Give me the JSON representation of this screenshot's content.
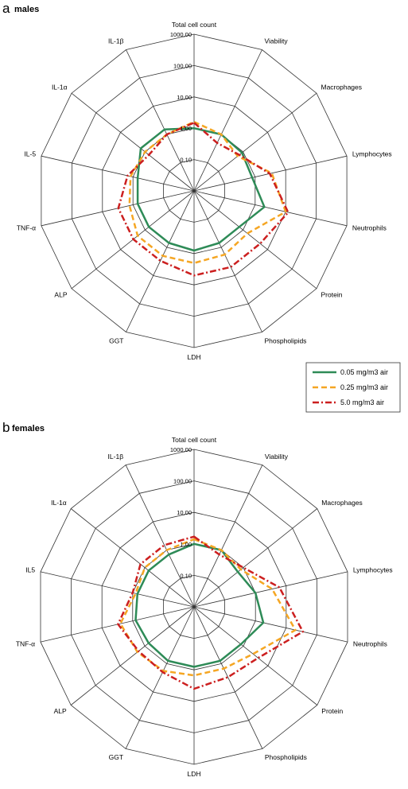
{
  "chart_data": [
    {
      "type": "radar",
      "panel_letter": "a",
      "title": "males",
      "axes": [
        "Total cell count",
        "Viability",
        "Macrophages",
        "Lymphocytes",
        "Neutrophils",
        "Protein",
        "Phospholipids",
        "LDH",
        "GGT",
        "ALP",
        "TNF-α",
        "IL-5",
        "IL-1α",
        "IL-1β"
      ],
      "scale": "log",
      "ticks": [
        "0,10",
        "1,00",
        "10,00",
        "100,00",
        "1000,00"
      ],
      "tick_values": [
        0.1,
        1,
        10,
        100,
        1000
      ],
      "grid": true,
      "series": [
        {
          "name": "0.05 mg/m3 air",
          "color": "#2e8b57",
          "dash": "solid",
          "values": [
            1.0,
            1.0,
            0.9,
            0.8,
            2.0,
            0.7,
            0.7,
            0.8,
            0.7,
            0.7,
            0.7,
            0.7,
            1.5,
            1.5
          ]
        },
        {
          "name": "0.25 mg/m3 air",
          "color": "#f5a623",
          "dash": "dash",
          "values": [
            1.6,
            1.0,
            0.6,
            3.5,
            10.0,
            1.5,
            1.8,
            2.0,
            2.0,
            2.0,
            1.3,
            1.2,
            1.0,
            1.0
          ]
        },
        {
          "name": "5.0 mg/m3 air",
          "color": "#cc1f1f",
          "dash": "dashdot",
          "values": [
            1.5,
            0.5,
            0.7,
            3.0,
            12.0,
            5.0,
            5.0,
            5.0,
            3.0,
            3.0,
            3.0,
            1.5,
            0.7,
            1.0
          ]
        }
      ],
      "legend_position": "bottom-right"
    },
    {
      "type": "radar",
      "panel_letter": "b",
      "title": "females",
      "axes": [
        "Total cell count",
        "Viability",
        "Macrophages",
        "Lymphocytes",
        "Neutrophils",
        "Protein",
        "Phospholipids",
        "LDH",
        "GGT",
        "ALP",
        "TNF-α",
        "IL5",
        "IL-1α",
        "IL-1β"
      ],
      "scale": "log",
      "ticks": [
        "0,10",
        "1,00",
        "10,00",
        "100,00",
        "1000,00"
      ],
      "tick_values": [
        0.1,
        1,
        10,
        100,
        1000
      ],
      "grid": true,
      "series": [
        {
          "name": "0.05 mg/m3 air",
          "color": "#2e8b57",
          "dash": "solid",
          "values": [
            1.0,
            1.0,
            0.6,
            1.0,
            1.8,
            0.8,
            0.8,
            0.8,
            0.8,
            0.7,
            0.8,
            0.7,
            0.7,
            0.7
          ]
        },
        {
          "name": "0.25 mg/m3 air",
          "color": "#f5a623",
          "dash": "dash",
          "values": [
            1.4,
            1.0,
            0.8,
            3.5,
            20.0,
            2.5,
            1.5,
            1.5,
            1.8,
            2.0,
            2.5,
            0.8,
            1.0,
            1.0
          ]
        },
        {
          "name": "5.0 mg/m3 air",
          "color": "#cc1f1f",
          "dash": "dashdot",
          "values": [
            1.7,
            0.7,
            1.0,
            6.0,
            35.0,
            4.0,
            3.0,
            4.0,
            2.0,
            1.8,
            3.0,
            1.0,
            1.5,
            1.5
          ]
        }
      ]
    }
  ]
}
